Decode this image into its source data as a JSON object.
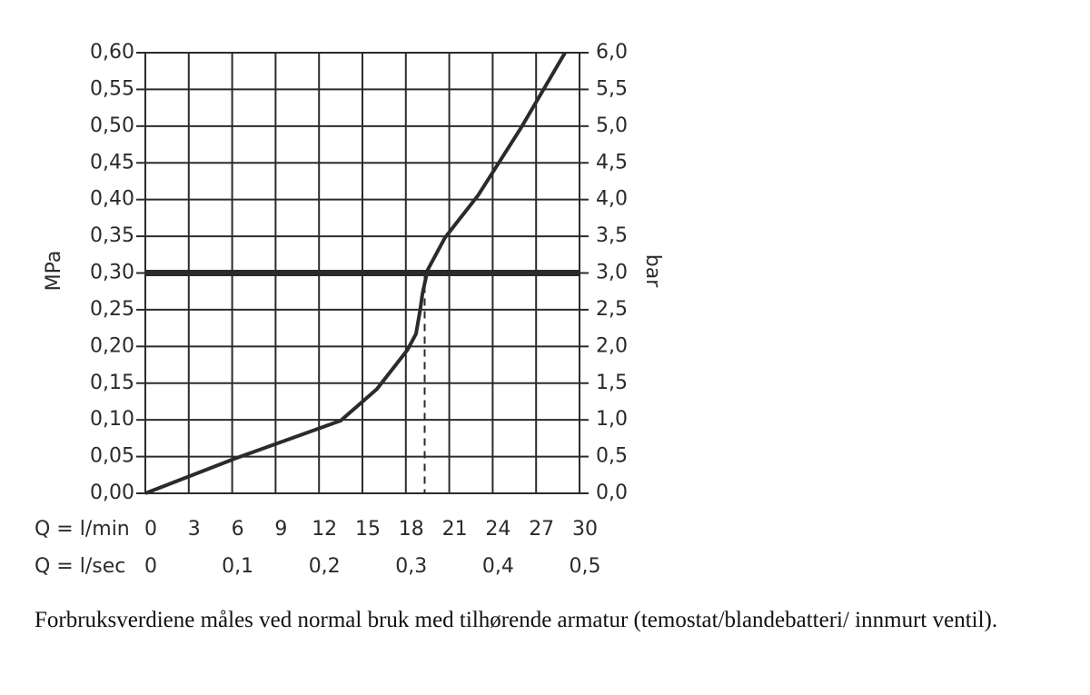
{
  "chart_data": {
    "type": "line",
    "y_label": "MPa",
    "y2_label": "bar",
    "x_row_label": "Q = l/min",
    "x2_row_label": "Q = l/sec",
    "caption": "Forbruksverdiene måles ved normal bruk med tilhørende armatur (temostat/blandebatteri/ innmurt ventil).",
    "x": [
      0,
      6.15,
      13.5,
      16.0,
      18.1,
      18.7,
      19.0,
      19.15,
      19.5,
      20.7,
      23.0,
      26.0,
      29.0
    ],
    "values": [
      0,
      0.047,
      0.099,
      0.142,
      0.195,
      0.217,
      0.251,
      0.272,
      0.304,
      0.348,
      0.406,
      0.499,
      0.6
    ],
    "color": "#2b2b2b",
    "reference_y": 0.3,
    "dashed_x": 19.3,
    "xlim": [
      0,
      30
    ],
    "xticks": [
      0,
      3,
      6,
      9,
      12,
      15,
      18,
      21,
      24,
      27,
      30
    ],
    "x2lim": [
      0,
      0.5
    ],
    "x2ticks": [
      0,
      {
        "value": 0.1,
        "label": "0,1"
      },
      {
        "value": 0.2,
        "label": "0,2"
      },
      {
        "value": 0.3,
        "label": "0,3"
      },
      {
        "value": 0.4,
        "label": "0,4"
      },
      {
        "value": 0.5,
        "label": "0,5"
      }
    ],
    "ylim": [
      0,
      0.6
    ],
    "yticks": [
      {
        "value": 0,
        "label": "0,00"
      },
      {
        "value": 0.05,
        "label": "0,05"
      },
      {
        "value": 0.1,
        "label": "0,10"
      },
      {
        "value": 0.15,
        "label": "0,15"
      },
      {
        "value": 0.2,
        "label": "0,20"
      },
      {
        "value": 0.25,
        "label": "0,25"
      },
      {
        "value": 0.3,
        "label": "0,30"
      },
      {
        "value": 0.35,
        "label": "0,35"
      },
      {
        "value": 0.4,
        "label": "0,40"
      },
      {
        "value": 0.45,
        "label": "0,45"
      },
      {
        "value": 0.5,
        "label": "0,50"
      },
      {
        "value": 0.55,
        "label": "0,55"
      },
      {
        "value": 0.6,
        "label": "0,60"
      }
    ],
    "y2lim": [
      0,
      6
    ],
    "y2ticks": [
      {
        "value": 0,
        "label": "0,0"
      },
      {
        "value": 0.5,
        "label": "0,5"
      },
      {
        "value": 1,
        "label": "1,0"
      },
      {
        "value": 1.5,
        "label": "1,5"
      },
      {
        "value": 2,
        "label": "2,0"
      },
      {
        "value": 2.5,
        "label": "2,5"
      },
      {
        "value": 3,
        "label": "3,0"
      },
      {
        "value": 3.5,
        "label": "3,5"
      },
      {
        "value": 4,
        "label": "4,0"
      },
      {
        "value": 4.5,
        "label": "4,5"
      },
      {
        "value": 5,
        "label": "5,0"
      },
      {
        "value": 5.5,
        "label": "5,5"
      },
      {
        "value": 6,
        "label": "6,0"
      }
    ],
    "grid": true
  }
}
